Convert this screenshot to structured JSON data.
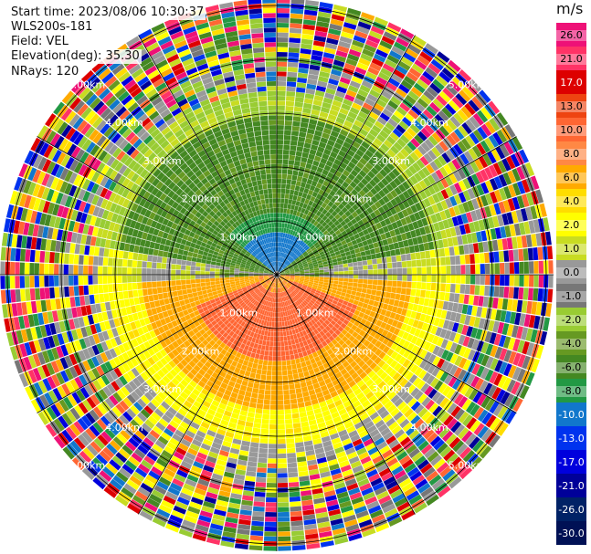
{
  "header": {
    "start_time": "Start time: 2023/08/06 10:30:37",
    "station": "WLS200s-181",
    "field": "Field: VEL",
    "elevation": "Elevation(deg): 35.30",
    "nrays": "NRays: 120"
  },
  "chart_data": {
    "type": "ppi-polar-scan",
    "field": "VEL",
    "units": "m/s",
    "elevation_deg": 35.3,
    "n_rays": 120,
    "range_ring_labels": [
      "1.00km",
      "2.00km",
      "3.00km",
      "4.00km",
      "5.00km"
    ],
    "colorbar": {
      "title": "m/s",
      "ticks": [
        "26.0",
        "21.0",
        "17.0",
        "13.0",
        "10.0",
        "8.0",
        "6.0",
        "4.0",
        "2.0",
        "1.0",
        "0.0",
        "-1.0",
        "-2.0",
        "-4.0",
        "-6.0",
        "-8.0",
        "-10.0",
        "-13.0",
        "-17.0",
        "-21.0",
        "-26.0",
        "-30.0"
      ],
      "colors": [
        "#ee1177",
        "#ff3366",
        "#dd0000",
        "#ee4411",
        "#ff6633",
        "#ff8844",
        "#ffaa00",
        "#ffdd00",
        "#ffff00",
        "#c8dc22",
        "#999999",
        "#777777",
        "#99cc33",
        "#669922",
        "#448822",
        "#229944",
        "#1177cc",
        "#0033ee",
        "#0000dd",
        "#000099",
        "#002266",
        "#001155"
      ]
    }
  }
}
